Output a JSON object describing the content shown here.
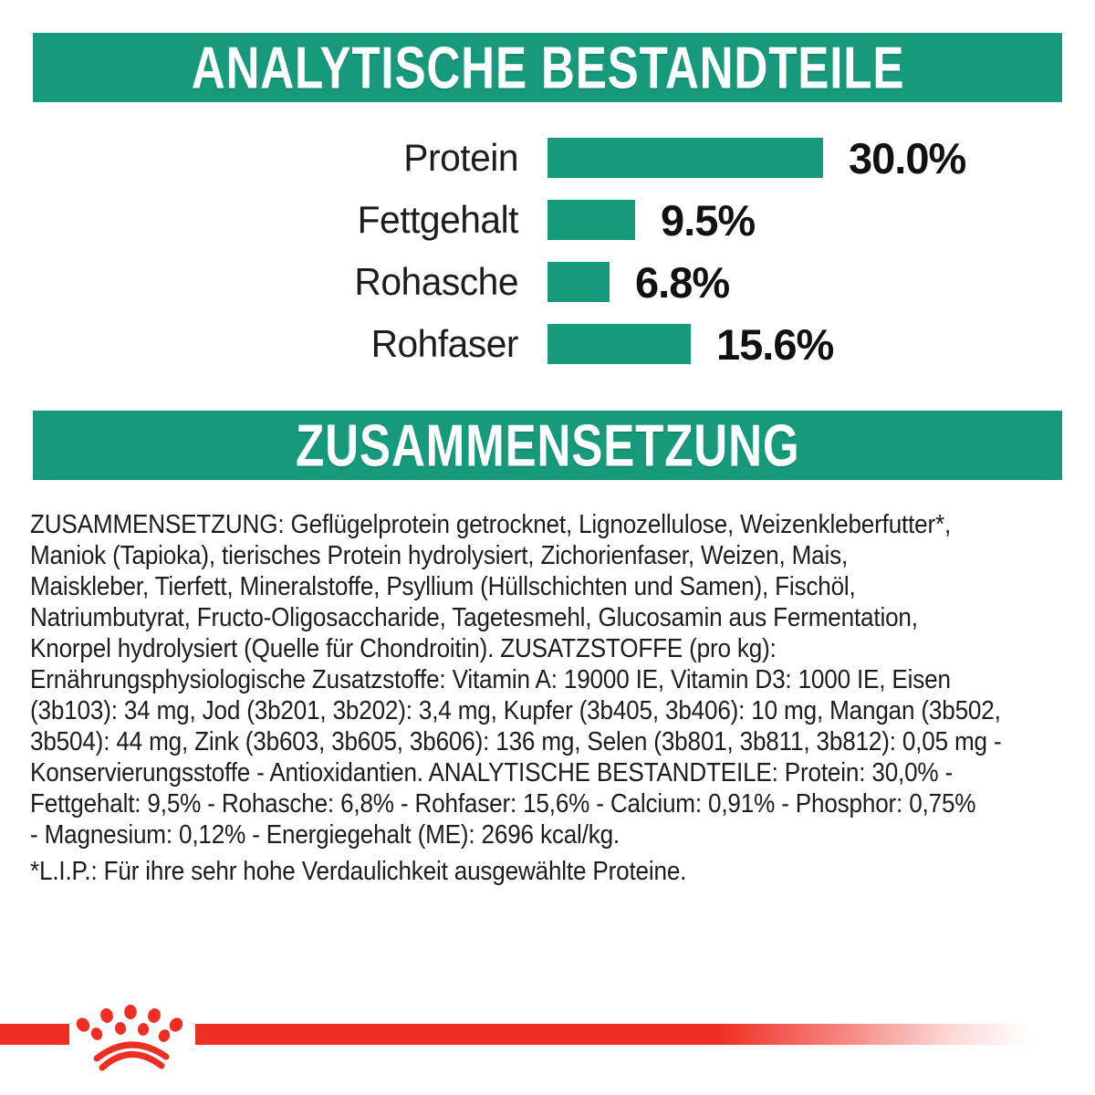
{
  "colors": {
    "green": "#169a7b",
    "red": "#ee2e22",
    "text": "#1d1d1b",
    "header_text": "#ffffff"
  },
  "section_analytical": {
    "title": "ANALYTISCHE BESTANDTEILE"
  },
  "section_composition": {
    "title": "ZUSAMMENSETZUNG"
  },
  "chart_data": {
    "type": "bar",
    "orientation": "horizontal",
    "title": "ANALYTISCHE BESTANDTEILE",
    "categories": [
      "Protein",
      "Fettgehalt",
      "Rohasche",
      "Rohfaser"
    ],
    "values": [
      30.0,
      9.5,
      6.8,
      15.6
    ],
    "value_labels": [
      "30.0%",
      "9.5%",
      "6.8%",
      "15.6%"
    ],
    "unit": "%",
    "xlim": [
      0,
      30
    ],
    "bar_color": "#169a7b",
    "grid": false,
    "legend": false,
    "value_label_position": "right-of-bar"
  },
  "composition": {
    "lines": [
      "ZUSAMMENSETZUNG: Geflügelprotein getrocknet, Lignozellulose, Weizenkleberfutter*,",
      "Maniok (Tapioka), tierisches Protein hydrolysiert, Zichorienfaser, Weizen, Mais,",
      "Maiskleber, Tierfett, Mineralstoffe, Psyllium (Hüllschichten und Samen), Fischöl,",
      "Natriumbutyrat, Fructo-Oligosaccharide, Tagetesmehl, Glucosamin aus Fermentation,",
      "Knorpel hydrolysiert (Quelle für Chondroitin). ZUSATZSTOFFE (pro kg):",
      "Ernährungsphysiologische Zusatzstoffe: Vitamin A: 19000 IE, Vitamin D3: 1000 IE, Eisen",
      "(3b103): 34 mg, Jod (3b201, 3b202): 3,4 mg, Kupfer (3b405, 3b406): 10 mg, Mangan (3b502,",
      "3b504): 44 mg, Zink (3b603, 3b605, 3b606): 136 mg, Selen (3b801, 3b811, 3b812): 0,05 mg -",
      "Konservierungsstoffe - Antioxidantien. ANALYTISCHE BESTANDTEILE: Protein: 30,0% -",
      "Fettgehalt: 9,5% - Rohasche: 6,8% - Rohfaser: 15,6% - Calcium: 0,91% - Phosphor: 0,75%",
      "- Magnesium: 0,12% - Energiegehalt (ME): 2696 kcal/kg."
    ],
    "footnote": "*L.I.P.: Für ihre sehr hohe Verdaulichkeit ausgewählte Proteine."
  },
  "logo": {
    "name": "royal-canin-crown",
    "color": "#ee2e22"
  }
}
